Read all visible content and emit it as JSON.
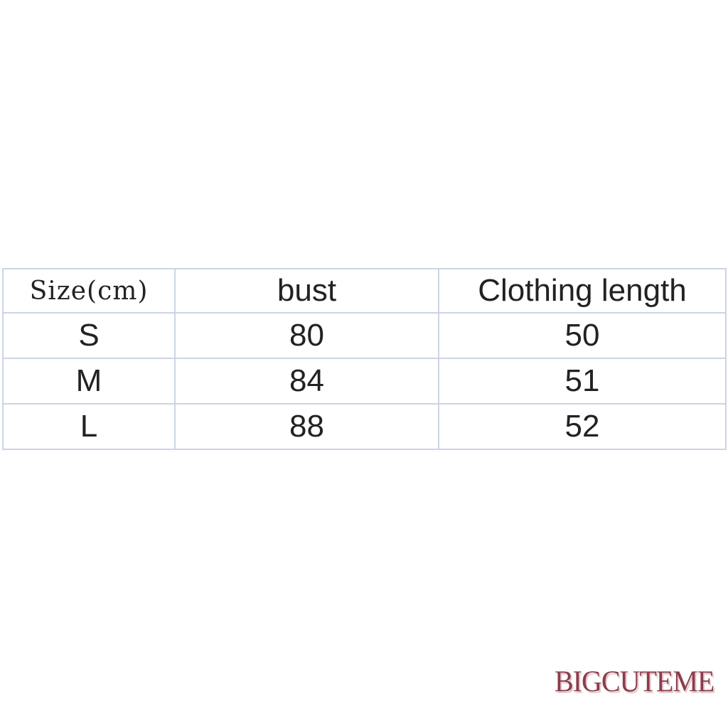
{
  "table": {
    "headers": [
      "Size(cm)",
      "bust",
      "Clothing length"
    ],
    "rows": [
      [
        "S",
        "80",
        "50"
      ],
      [
        "M",
        "84",
        "51"
      ],
      [
        "L",
        "88",
        "52"
      ]
    ]
  },
  "watermark": "BIGCUTEME",
  "colors": {
    "border": "#ccd4e4",
    "watermark": "#8a3d4c"
  }
}
